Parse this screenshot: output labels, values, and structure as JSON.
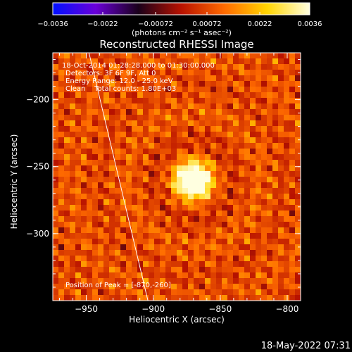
{
  "chart_data": {
    "type": "heatmap",
    "title": "Reconstructed RHESSI Image",
    "colorbar": {
      "ticks": [
        "-0.0036",
        "-0.0022",
        "-0.00072",
        "0.00072",
        "0.0022",
        "0.0036"
      ],
      "tick_values": [
        -0.0036,
        -0.0022,
        -0.00072,
        0.00072,
        0.0022,
        0.0036
      ],
      "range": [
        -0.0036,
        0.0036
      ],
      "units": "(photons cm⁻² s⁻¹ asec⁻²)",
      "colormap": [
        "#0010ff",
        "#6a00d8",
        "#1a001a",
        "#b81200",
        "#ff6a00",
        "#ffd400",
        "#ffffe0"
      ]
    },
    "xlabel": "Heliocentric X (arcsec)",
    "ylabel": "Heliocentric Y (arcsec)",
    "xlim": [
      -975,
      -790
    ],
    "ylim": [
      -350,
      -165
    ],
    "xticks": [
      -950,
      -900,
      -850,
      -800
    ],
    "yticks": [
      -200,
      -250,
      -300
    ],
    "xtick_labels": [
      "−950",
      "−900",
      "−850",
      "−800"
    ],
    "ytick_labels": [
      "−200",
      "−250",
      "−300"
    ],
    "annotations": [
      "18-Oct-2014 01:28:28.000 to 01:30:00.000",
      "Detectors: 3F 6F 9F, Att 0",
      "Energy Range: 12.0 - 25.0 keV",
      "Clean    Total counts: 1.80E+03"
    ],
    "peak_label": "Position of Peak = [-870,-260]",
    "peak": {
      "x": -870,
      "y": -260
    },
    "limb_line": [
      {
        "x": -948,
        "y": -165
      },
      {
        "x": -904,
        "y": -350
      }
    ],
    "timestamp": "18-May-2022 07:31"
  }
}
